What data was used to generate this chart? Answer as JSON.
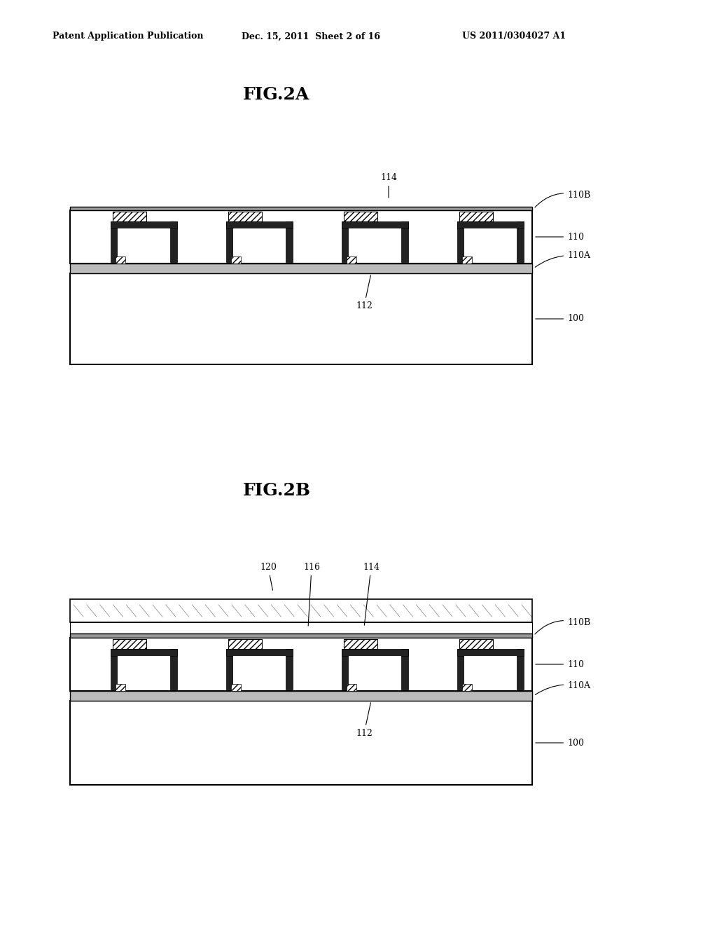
{
  "bg_color": "#ffffff",
  "header_left": "Patent Application Publication",
  "header_mid": "Dec. 15, 2011  Sheet 2 of 16",
  "header_right": "US 2011/0304027 A1",
  "fig_a_title": "FIG.2A",
  "fig_b_title": "FIG.2B"
}
